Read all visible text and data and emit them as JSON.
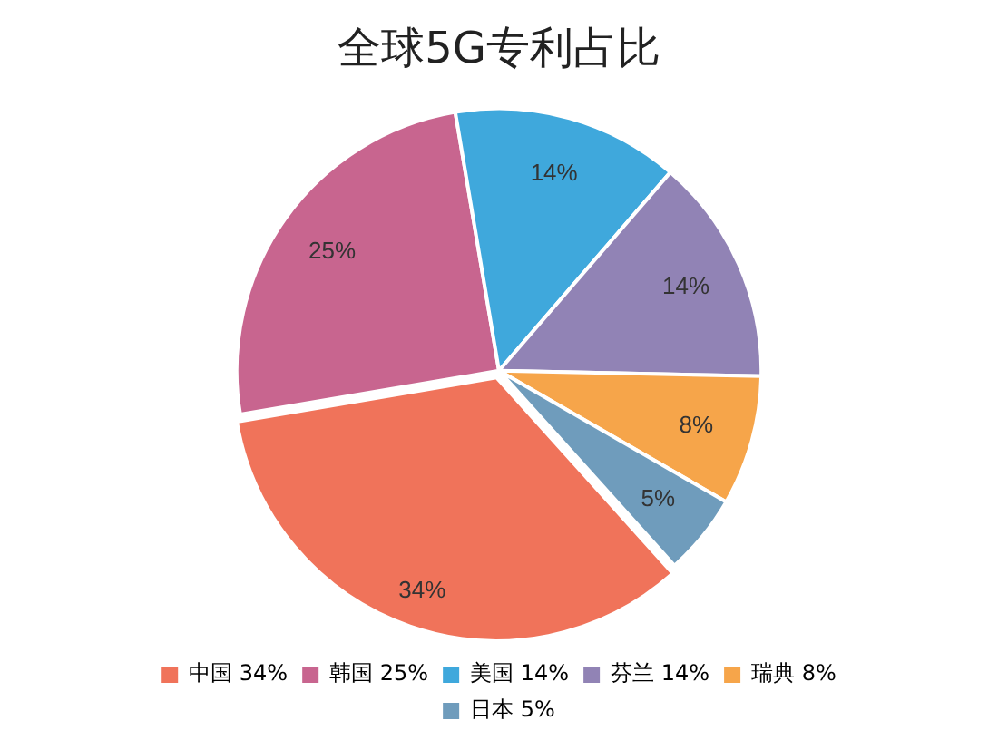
{
  "chart_data": {
    "type": "pie",
    "title": "全球5G专利占比",
    "categories": [
      "中国",
      "韩国",
      "美国",
      "芬兰",
      "瑞典",
      "日本"
    ],
    "values": [
      34,
      25,
      14,
      14,
      8,
      5
    ],
    "value_labels": [
      "34%",
      "25%",
      "14%",
      "14%",
      "8%",
      "5%"
    ],
    "colors": [
      "#f0735a",
      "#c8658f",
      "#3fa8dc",
      "#9183b5",
      "#f6a54a",
      "#6f9cbc"
    ],
    "legend": "bottom"
  }
}
